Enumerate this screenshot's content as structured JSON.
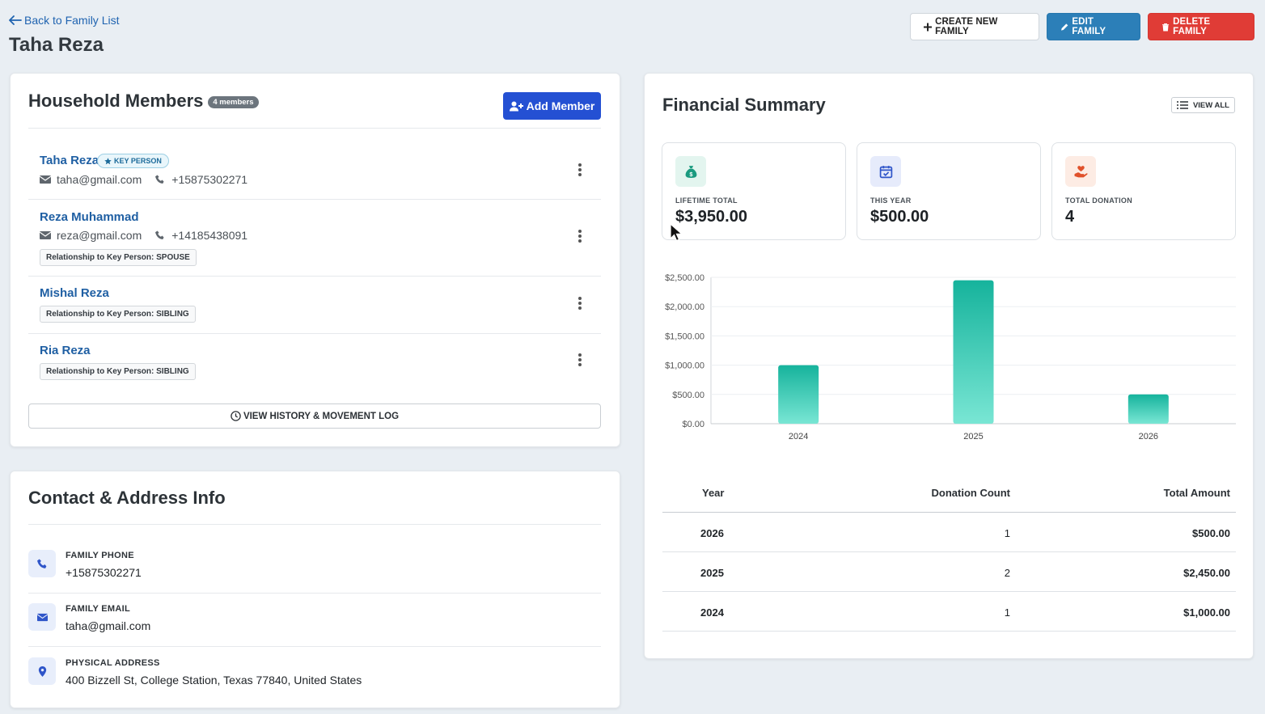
{
  "header": {
    "back_label": "Back to Family List",
    "title": "Taha Reza",
    "actions": {
      "create": "CREATE NEW FAMILY",
      "edit": "EDIT FAMILY",
      "delete": "DELETE FAMILY"
    }
  },
  "household": {
    "title": "Household Members",
    "count_badge": "4 members",
    "add_label": "Add Member",
    "members": [
      {
        "name": "Taha Reza",
        "badge": "KEY PERSON",
        "email": "taha@gmail.com",
        "phone": "+15875302271"
      },
      {
        "name": "Reza Muhammad",
        "email": "reza@gmail.com",
        "phone": "+14185438091",
        "relationship": "Relationship to Key Person: SPOUSE"
      },
      {
        "name": "Mishal Reza",
        "relationship": "Relationship to Key Person: SIBLING"
      },
      {
        "name": "Ria Reza",
        "relationship": "Relationship to Key Person: SIBLING"
      }
    ],
    "history_label": "VIEW HISTORY & MOVEMENT LOG"
  },
  "contact": {
    "title": "Contact & Address Info",
    "rows": [
      {
        "label": "FAMILY PHONE",
        "value": "+15875302271",
        "icon": "phone-icon"
      },
      {
        "label": "FAMILY EMAIL",
        "value": "taha@gmail.com",
        "icon": "envelope-icon"
      },
      {
        "label": "PHYSICAL ADDRESS",
        "value": "400 Bizzell St, College Station, Texas 77840, United States",
        "icon": "map-pin-icon"
      }
    ]
  },
  "finance": {
    "title": "Financial Summary",
    "view_all": "VIEW ALL",
    "stats": [
      {
        "label": "LIFETIME TOTAL",
        "value": "$3,950.00",
        "icon": "money-bag-icon",
        "color": "#1a9a7f",
        "bg": "#e3f5ef"
      },
      {
        "label": "THIS YEAR",
        "value": "$500.00",
        "icon": "calendar-check-icon",
        "color": "#2f55c9",
        "bg": "#e6ebfb"
      },
      {
        "label": "TOTAL DONATION",
        "value": "4",
        "icon": "hand-heart-icon",
        "color": "#e0512b",
        "bg": "#fdece4"
      }
    ],
    "table": {
      "headers": [
        "Year",
        "Donation Count",
        "Total Amount"
      ],
      "rows": [
        {
          "year": "2026",
          "count": "1",
          "amount": "$500.00"
        },
        {
          "year": "2025",
          "count": "2",
          "amount": "$2,450.00"
        },
        {
          "year": "2024",
          "count": "1",
          "amount": "$1,000.00"
        }
      ]
    }
  },
  "chart_data": {
    "type": "bar",
    "categories": [
      "2024",
      "2025",
      "2026"
    ],
    "values": [
      1000,
      2450,
      500
    ],
    "ylim": [
      0,
      2500
    ],
    "yticks": [
      0,
      500,
      1000,
      1500,
      2000,
      2500
    ],
    "ytick_labels": [
      "$0.00",
      "$500.00",
      "$1,000.00",
      "$1,500.00",
      "$2,000.00",
      "$2,500.00"
    ],
    "title": "",
    "xlabel": "",
    "ylabel": "",
    "grid": true,
    "bar_color_top": "#16b39c",
    "bar_color_bottom": "#79e6d4"
  }
}
